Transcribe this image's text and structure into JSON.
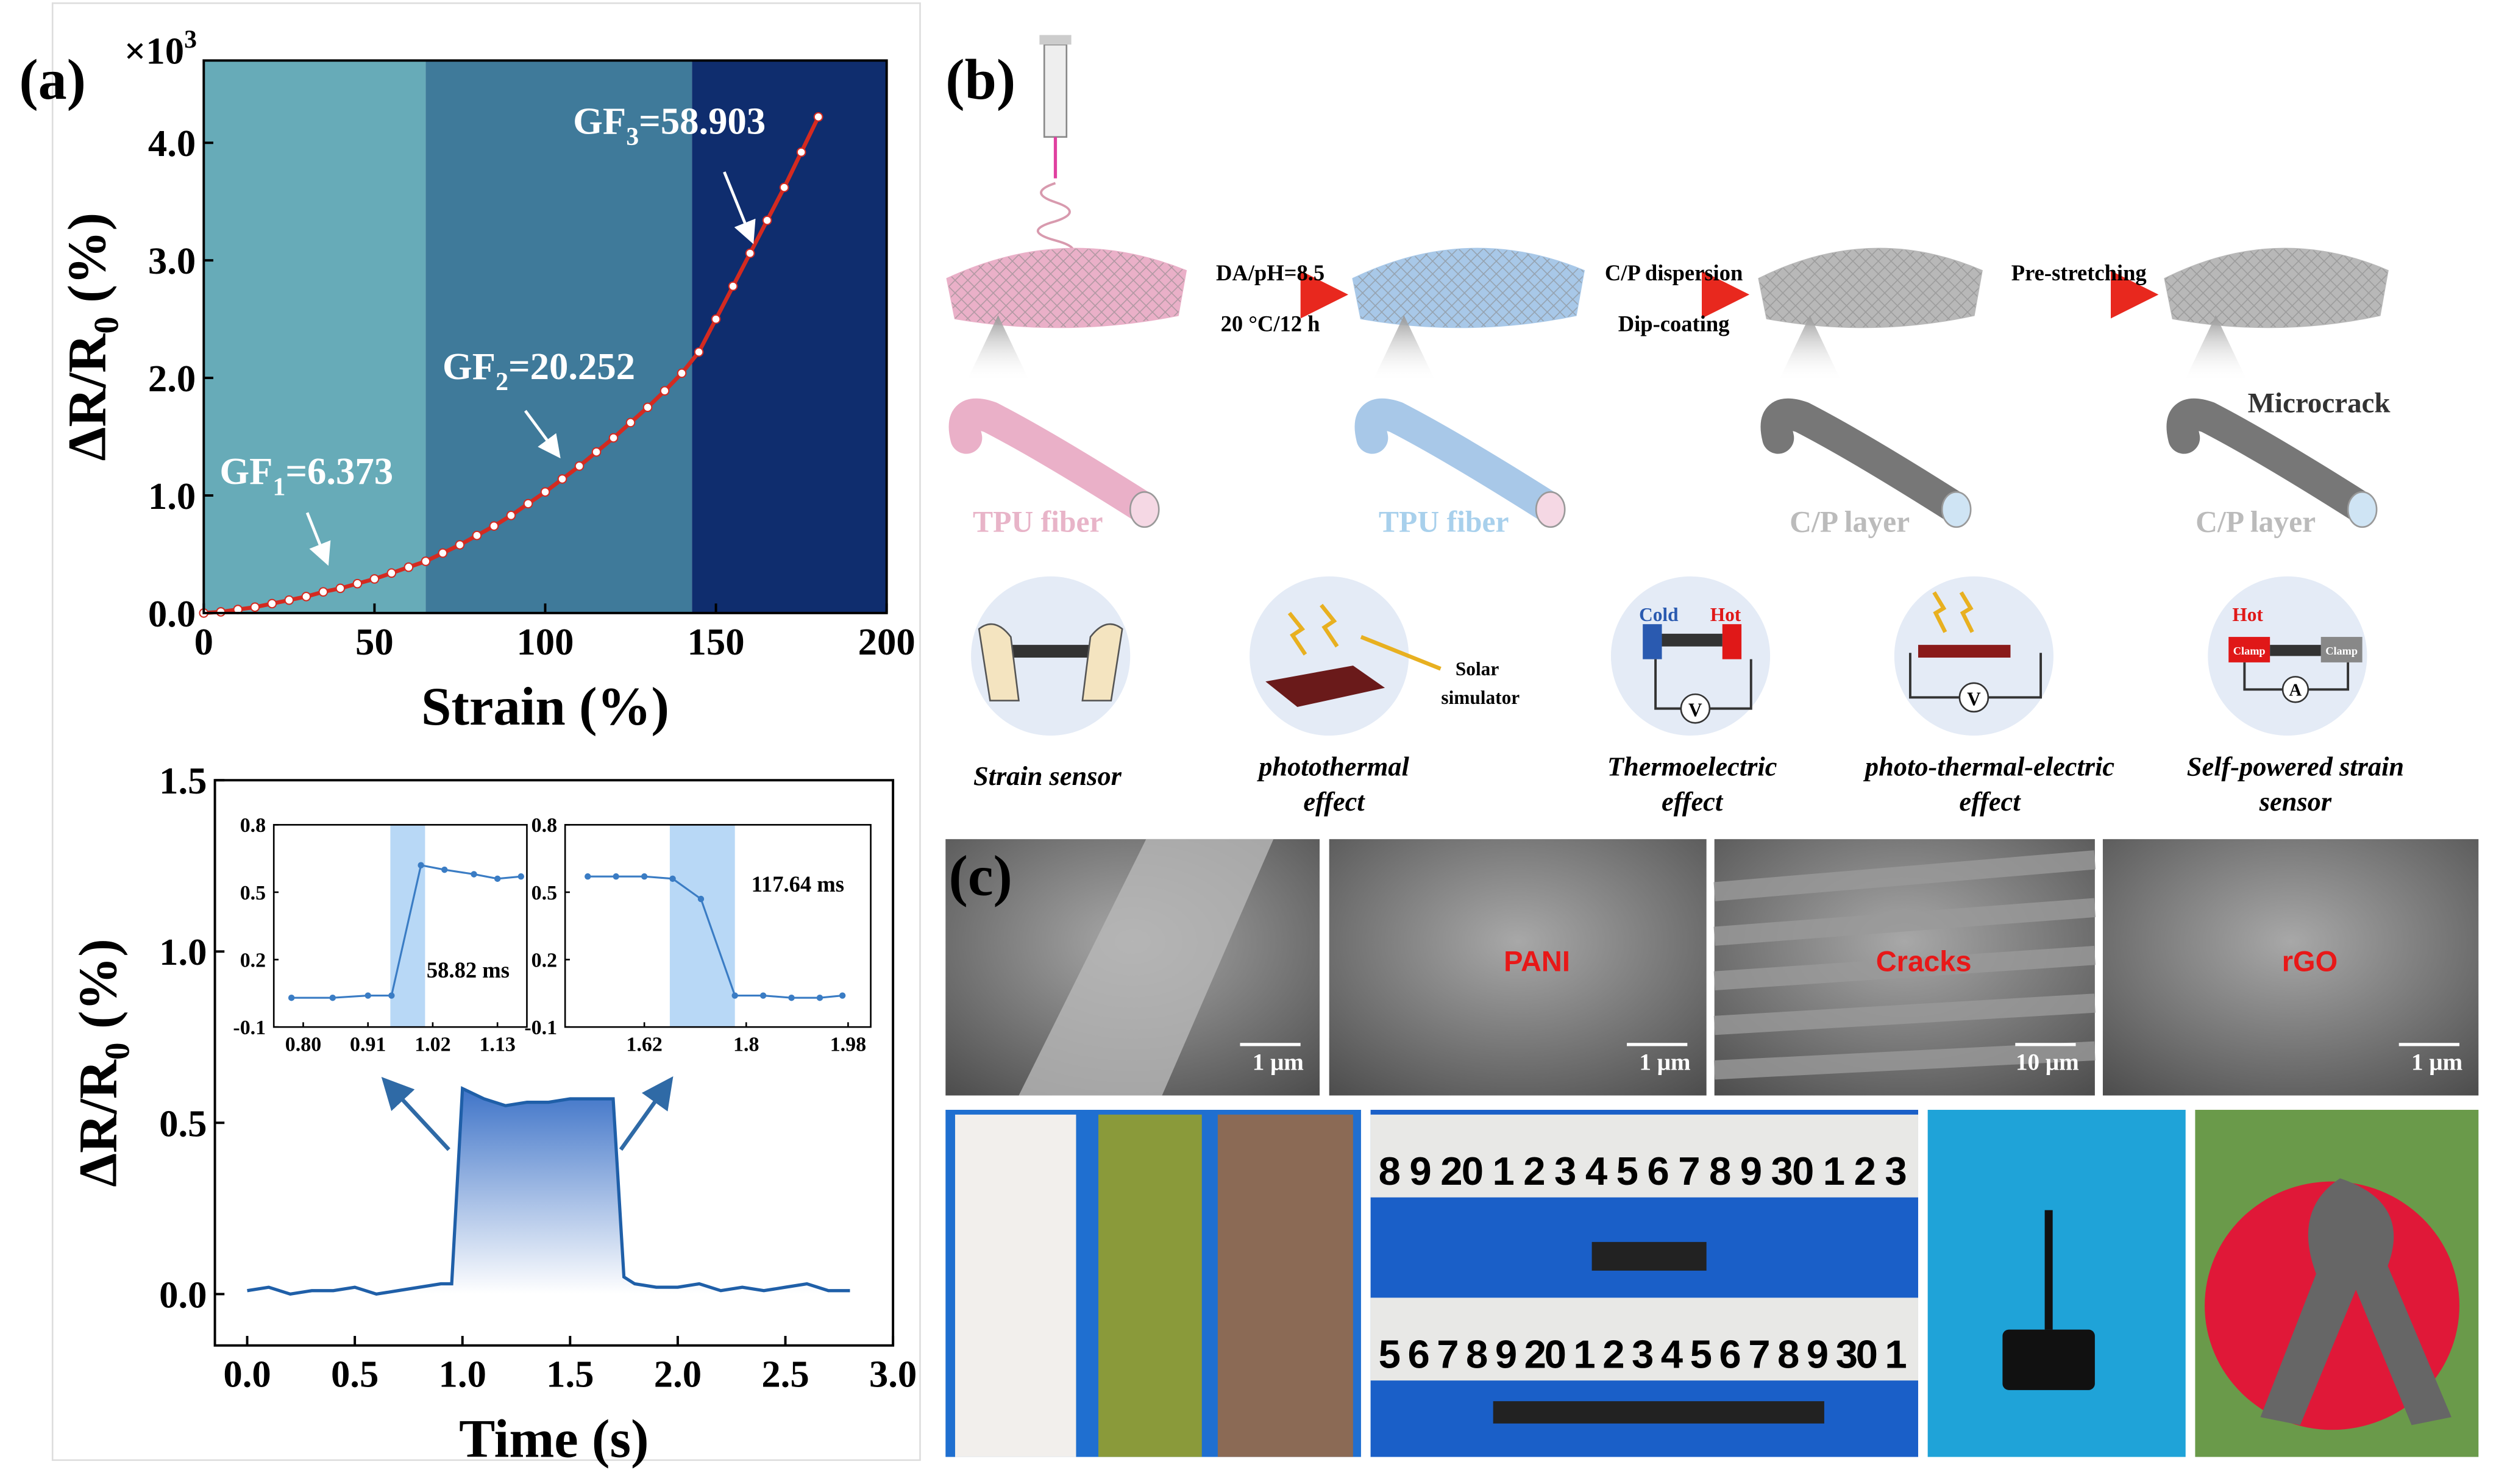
{
  "panel_labels": [
    "(a)",
    "(b)",
    "(c)"
  ],
  "chart_data": [
    {
      "type": "line",
      "markers": true,
      "color": "#d42a20",
      "marker_color": "#ffffff",
      "x": [
        0,
        5,
        10,
        15,
        20,
        25,
        30,
        35,
        40,
        45,
        50,
        55,
        60,
        65,
        70,
        75,
        80,
        85,
        90,
        95,
        100,
        105,
        110,
        115,
        120,
        125,
        130,
        135,
        140,
        145,
        150,
        155,
        160,
        165,
        170,
        175,
        180
      ],
      "values": [
        0,
        0.01,
        0.03,
        0.05,
        0.08,
        0.11,
        0.14,
        0.18,
        0.21,
        0.25,
        0.29,
        0.34,
        0.39,
        0.44,
        0.51,
        0.58,
        0.66,
        0.74,
        0.83,
        0.93,
        1.03,
        1.14,
        1.25,
        1.37,
        1.49,
        1.62,
        1.75,
        1.89,
        2.04,
        2.22,
        2.5,
        2.78,
        3.06,
        3.34,
        3.62,
        3.92,
        4.22
      ],
      "xlim": [
        0,
        200
      ],
      "xticks": [
        0,
        50,
        100,
        150,
        200
      ],
      "ylim": [
        0,
        4.7
      ],
      "yticks": [
        {
          "value": 0,
          "label": "0.0"
        },
        {
          "value": 1,
          "label": "1.0"
        },
        {
          "value": 2,
          "label": "2.0"
        },
        {
          "value": 3,
          "label": "3.0"
        },
        {
          "value": 4,
          "label": "4.0"
        }
      ],
      "x_label": "Strain (%)",
      "y_label": {
        "main": "ΔR/R",
        "sub": "0",
        "unit": " (%)"
      },
      "y_multiplier": {
        "base": "×10",
        "exp": "3"
      },
      "regions": [
        {
          "from": 0,
          "to": 65,
          "color": "#67abb8"
        },
        {
          "from": 65,
          "to": 143,
          "color": "#3f7a9a"
        },
        {
          "from": 143,
          "to": 200,
          "color": "#0f2d6e"
        }
      ],
      "annotations": [
        {
          "text": "GF",
          "sub": "1",
          "rest": "=6.373"
        },
        {
          "text": "GF",
          "sub": "2",
          "rest": "=20.252"
        },
        {
          "text": "GF",
          "sub": "3",
          "rest": "=58.903"
        }
      ]
    },
    {
      "type": "line",
      "area": true,
      "color": "#1f5fa8",
      "x": [
        0,
        0.1,
        0.2,
        0.3,
        0.4,
        0.5,
        0.6,
        0.7,
        0.8,
        0.9,
        0.95,
        1,
        1.1,
        1.2,
        1.3,
        1.4,
        1.5,
        1.6,
        1.7,
        1.75,
        1.8,
        1.9,
        2,
        2.1,
        2.2,
        2.3,
        2.4,
        2.5,
        2.6,
        2.7,
        2.8
      ],
      "values": [
        0.01,
        0.02,
        0,
        0.01,
        0.01,
        0.02,
        0,
        0.01,
        0.02,
        0.03,
        0.03,
        0.6,
        0.57,
        0.55,
        0.56,
        0.56,
        0.57,
        0.57,
        0.57,
        0.05,
        0.03,
        0.02,
        0.02,
        0.03,
        0.01,
        0.02,
        0.01,
        0.02,
        0.03,
        0.01,
        0.01
      ],
      "xlim": [
        -0.15,
        3
      ],
      "xticks": [
        {
          "value": 0,
          "label": "0.0"
        },
        0.5,
        {
          "value": 1,
          "label": "1.0"
        },
        1.5,
        {
          "value": 2,
          "label": "2.0"
        },
        2.5,
        {
          "value": 3,
          "label": "3.0"
        }
      ],
      "ylim": [
        -0.15,
        1.5
      ],
      "yticks": [
        {
          "value": 0,
          "label": "0.0"
        },
        0.5,
        {
          "value": 1,
          "label": "1.0"
        },
        1.5
      ],
      "x_label": "Time (s)",
      "y_label": {
        "main": "ΔR/R",
        "sub": "0",
        "unit": " (%)"
      }
    },
    {
      "type": "line",
      "markers": true,
      "color": "#3a7cc4",
      "marker_color": "#3a7cc4",
      "x": [
        0.78,
        0.85,
        0.91,
        0.95,
        1.0,
        1.04,
        1.09,
        1.13,
        1.17
      ],
      "values": [
        0.03,
        0.03,
        0.04,
        0.04,
        0.62,
        0.6,
        0.58,
        0.56,
        0.57
      ],
      "xlim": [
        0.75,
        1.18
      ],
      "xticks": [
        {
          "value": 0.8,
          "label": "0.80"
        },
        0.91,
        1.02,
        1.13
      ],
      "ylim": [
        -0.1,
        0.8
      ],
      "yticks": [
        -0.1,
        0.2,
        0.5,
        0.8
      ],
      "highlight": {
        "from": 0.948,
        "to": 1.007,
        "color": "#b8d8f6"
      },
      "annotation": "58.82 ms"
    },
    {
      "type": "line",
      "markers": true,
      "color": "#3a7cc4",
      "marker_color": "#3a7cc4",
      "x": [
        1.52,
        1.57,
        1.62,
        1.67,
        1.72,
        1.78,
        1.83,
        1.88,
        1.93,
        1.97
      ],
      "values": [
        0.57,
        0.57,
        0.57,
        0.56,
        0.47,
        0.04,
        0.04,
        0.03,
        0.03,
        0.04
      ],
      "xlim": [
        1.48,
        2.02
      ],
      "xticks": [
        1.62,
        1.8,
        1.98
      ],
      "ylim": [
        -0.1,
        0.8
      ],
      "yticks": [
        -0.1,
        0.2,
        0.5,
        0.8
      ],
      "highlight": {
        "from": 1.665,
        "to": 1.78,
        "color": "#b8d8f6"
      },
      "annotation": "117.64 ms"
    }
  ],
  "diagram": {
    "steps": [
      {
        "top": "DA/pH=8.5",
        "bottom": "20 °C/12 h"
      },
      {
        "top": "C/P dispersion",
        "bottom": "Dip-coating"
      },
      {
        "top": "Pre-stretching"
      }
    ],
    "fiber_labels": [
      "TPU fiber",
      "TPU fiber",
      "C/P layer",
      "C/P layer"
    ],
    "microcrack": "Microcrack",
    "icons": {
      "solar": [
        "Solar",
        "simulator"
      ],
      "cold": "Cold",
      "hot": "Hot",
      "hot2": "Hot",
      "clamp": "Clamp",
      "volt": "V",
      "amp": "A"
    },
    "captions": [
      [
        "Strain sensor"
      ],
      [
        "photothermal",
        "effect"
      ],
      [
        "Thermoelectric",
        "effect"
      ],
      [
        "photo-thermal-electric",
        "effect"
      ],
      [
        "Self-powered strain",
        "sensor"
      ]
    ]
  },
  "micrographs": [
    {
      "scale_bar": "1 μm"
    },
    {
      "label": "PANI",
      "scale_bar": "1 μm"
    },
    {
      "label": "Cracks",
      "scale_bar": "10 μm"
    },
    {
      "label": "rGO",
      "scale_bar": "1 μm"
    }
  ],
  "photos": {
    "ruler_top": "8 9 20 1 2 3 4 5 6 7 8 9 30 1 2 3",
    "ruler_bottom": "5 6 7 8 9 20 1 2 3 4 5 6 7 8 9 30 1"
  }
}
